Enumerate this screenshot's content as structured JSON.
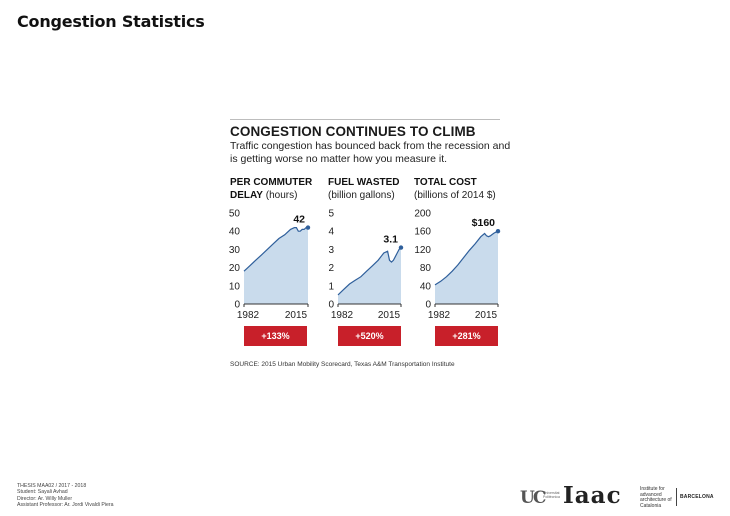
{
  "page_title": "Congestion Statistics",
  "headline": "CONGESTION CONTINUES TO CLIMB",
  "subhead": "Traffic congestion has bounced back from the recession and is getting worse no matter how you measure it.",
  "source": "SOURCE: 2015 Urban Mobility Scorecard, Texas A&M Transportation Institute",
  "footer": {
    "line1": "THESIS MAA02 / 2017 - 2018",
    "line2": "Student: Sayali Avhad",
    "line3": "Director: Ar. Willy Muller",
    "line4": "Assistant Professor: Ar. Jordi Vivaldi Piera"
  },
  "logos": {
    "u_mark": "UC",
    "u_text": "Universitat Politècnica",
    "iaac": "Iaac",
    "iaac_text": "Institute for advanced architecture of Catalonia",
    "city": "BARCELONA"
  },
  "colors": {
    "fill": "#c9dbec",
    "line": "#2f5f9b",
    "badge": "#c8202a",
    "axis": "#333333"
  },
  "chart_data": [
    {
      "type": "area",
      "title_bold": "PER COMMUTER DELAY",
      "title_rest": " (hours)",
      "x": [
        1982,
        1985,
        1988,
        1991,
        1994,
        1997,
        2000,
        2003,
        2006,
        2008,
        2009,
        2010,
        2011,
        2012,
        2013,
        2014,
        2015
      ],
      "values": [
        18,
        21,
        24,
        27,
        30,
        33,
        36,
        38,
        41,
        42,
        42,
        40,
        40,
        41,
        41,
        42,
        42
      ],
      "ylim": [
        0,
        50
      ],
      "yticks": [
        0,
        10,
        20,
        30,
        40,
        50
      ],
      "xticks": [
        "1982",
        "2015"
      ],
      "end_label": "42",
      "change": "+133%"
    },
    {
      "type": "area",
      "title_bold": "FUEL WASTED",
      "title_rest": "(billion gallons)",
      "x": [
        1982,
        1985,
        1988,
        1991,
        1994,
        1997,
        2000,
        2003,
        2006,
        2008,
        2009,
        2010,
        2011,
        2012,
        2013,
        2014,
        2015
      ],
      "values": [
        0.5,
        0.8,
        1.1,
        1.3,
        1.5,
        1.8,
        2.1,
        2.4,
        2.8,
        2.9,
        2.4,
        2.3,
        2.4,
        2.6,
        2.8,
        3.0,
        3.1
      ],
      "ylim": [
        0,
        5
      ],
      "yticks": [
        0,
        1,
        2,
        3,
        4,
        5
      ],
      "xticks": [
        "1982",
        "2015"
      ],
      "end_label": "3.1",
      "change": "+520%"
    },
    {
      "type": "area",
      "title_bold": "TOTAL COST",
      "title_rest": "(billions of 2014 $)",
      "x": [
        1982,
        1985,
        1988,
        1991,
        1994,
        1997,
        2000,
        2003,
        2006,
        2008,
        2009,
        2010,
        2011,
        2012,
        2013,
        2014,
        2015
      ],
      "values": [
        42,
        50,
        60,
        72,
        86,
        102,
        118,
        132,
        148,
        155,
        150,
        148,
        150,
        153,
        156,
        158,
        160
      ],
      "ylim": [
        0,
        200
      ],
      "yticks": [
        0,
        40,
        80,
        120,
        160,
        200
      ],
      "xticks": [
        "1982",
        "2015"
      ],
      "end_label": "$160",
      "change": "+281%"
    }
  ]
}
